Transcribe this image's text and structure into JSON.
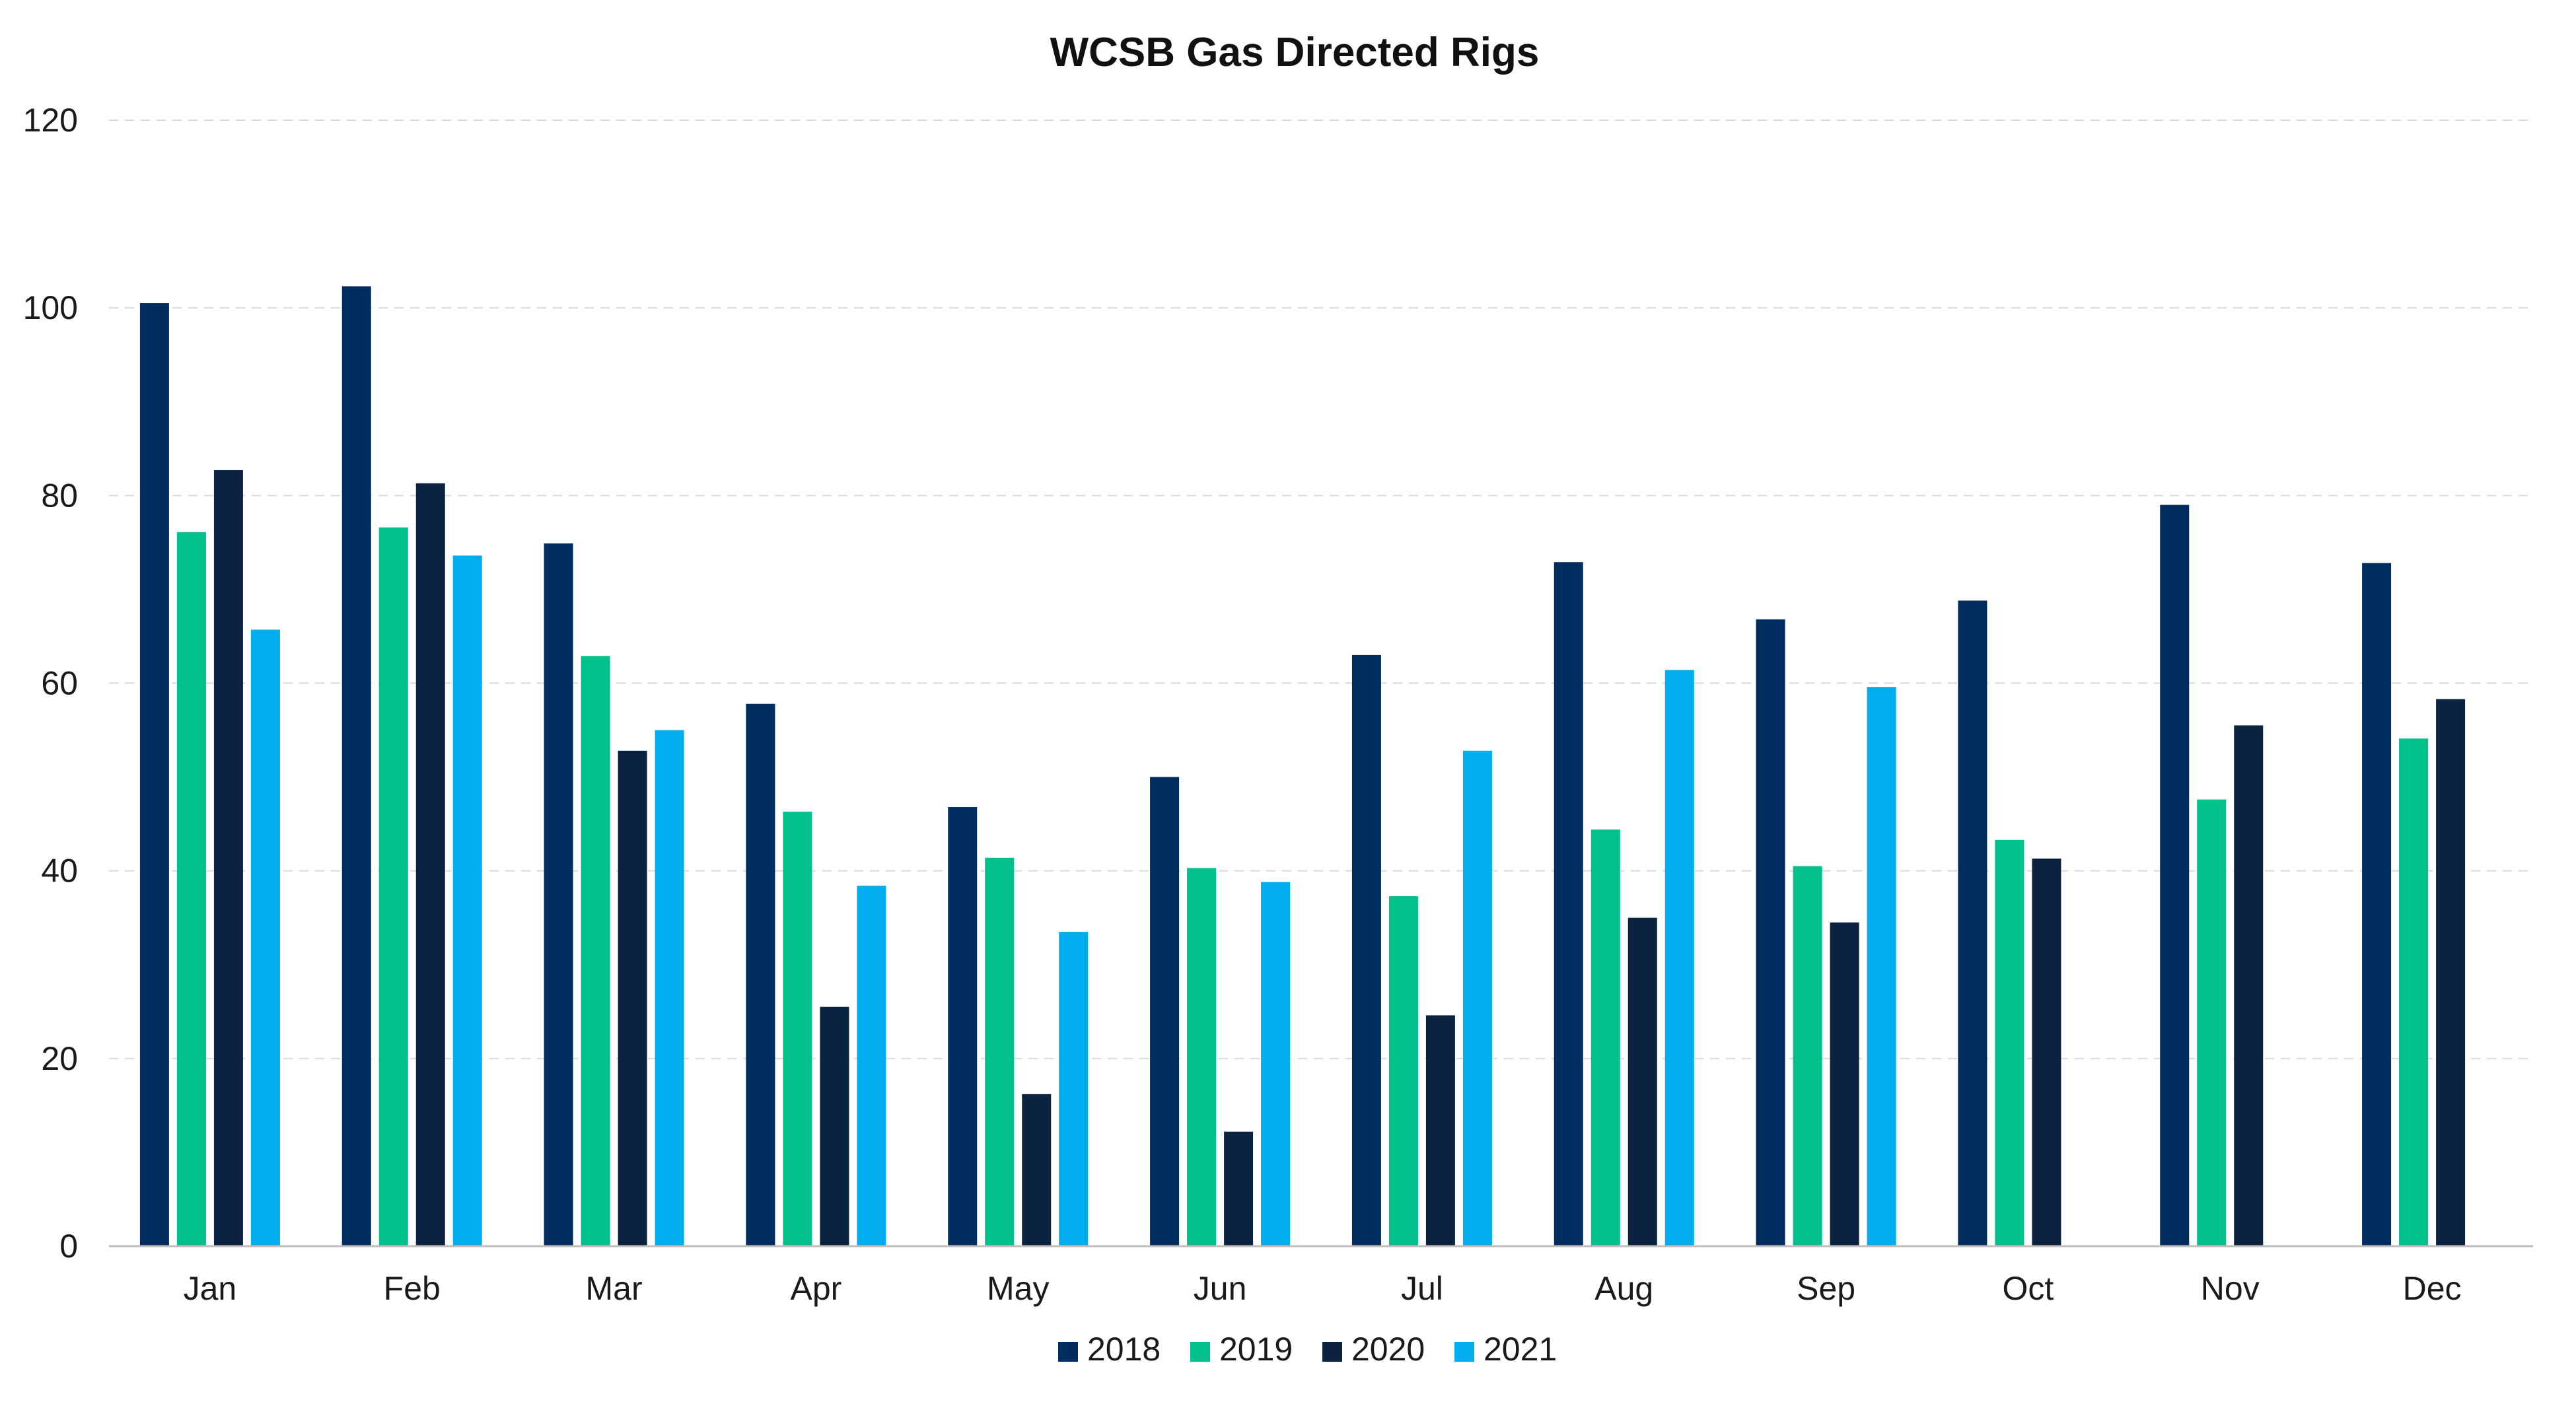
{
  "chart_data": {
    "type": "bar",
    "title": "WCSB Gas Directed Rigs",
    "xlabel": "",
    "ylabel": "",
    "ylim": [
      0,
      120
    ],
    "yticks": [
      0,
      20,
      40,
      60,
      80,
      100,
      120
    ],
    "grid": true,
    "legend_position": "bottom",
    "categories": [
      "Jan",
      "Feb",
      "Mar",
      "Apr",
      "May",
      "Jun",
      "Jul",
      "Aug",
      "Sep",
      "Oct",
      "Nov",
      "Dec"
    ],
    "series": [
      {
        "name": "2018",
        "color": "#002d5f",
        "values": [
          100.5,
          102.3,
          74.9,
          57.8,
          46.8,
          50.0,
          63.0,
          72.9,
          66.8,
          68.8,
          79.0,
          72.8
        ]
      },
      {
        "name": "2019",
        "color": "#00c08b",
        "values": [
          76.1,
          76.6,
          62.9,
          46.3,
          41.4,
          40.3,
          37.3,
          44.4,
          40.5,
          43.3,
          47.6,
          54.1
        ]
      },
      {
        "name": "2020",
        "color": "#0b2341",
        "values": [
          82.7,
          81.3,
          52.8,
          25.5,
          16.2,
          12.2,
          24.6,
          35.0,
          34.5,
          41.3,
          55.5,
          58.3
        ]
      },
      {
        "name": "2021",
        "color": "#00aeef",
        "values": [
          65.7,
          73.6,
          55.0,
          38.4,
          33.5,
          38.8,
          52.8,
          61.4,
          59.6,
          null,
          null,
          null
        ]
      }
    ]
  }
}
